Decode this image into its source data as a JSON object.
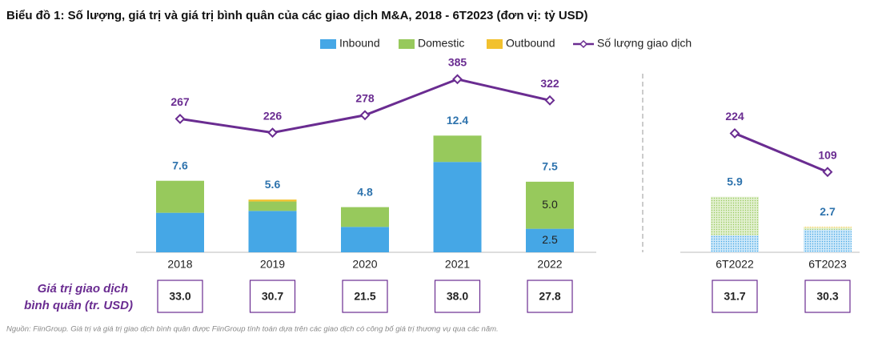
{
  "chart_data": {
    "type": "bar",
    "title": "Biểu đồ 1: Số lượng, giá trị và giá trị bình quân của các giao dịch M&A, 2018 - 6T2023 (đơn vị: tỷ USD)",
    "categories": [
      "2018",
      "2019",
      "2020",
      "2021",
      "2022",
      "6T2022",
      "6T2023"
    ],
    "break_before": "6T2022",
    "pattern_after_break": true,
    "ylim": [
      0,
      20
    ],
    "y2lim": [
      -130,
      430
    ],
    "series": [
      {
        "name": "Inbound",
        "color": "#45a7e6",
        "values": [
          4.2,
          4.4,
          2.7,
          9.6,
          2.5,
          1.8,
          2.4
        ],
        "value_labels": [
          null,
          null,
          null,
          null,
          "2.5",
          null,
          null
        ]
      },
      {
        "name": "Domestic",
        "color": "#97c95c",
        "values": [
          3.4,
          1.0,
          2.1,
          2.8,
          5.0,
          4.1,
          0.2
        ],
        "value_labels": [
          null,
          null,
          null,
          null,
          "5.0",
          null,
          null
        ]
      },
      {
        "name": "Outbound",
        "color": "#f2c12e",
        "values": [
          0,
          0.2,
          0,
          0,
          0,
          0,
          0.1
        ]
      },
      {
        "name": "Số lượng giao dịch",
        "type": "line",
        "axis": "y2",
        "color": "#6a2c91",
        "values": [
          267,
          226,
          278,
          385,
          322,
          224,
          109
        ]
      }
    ],
    "totals": [
      7.6,
      5.6,
      4.8,
      12.4,
      7.5,
      5.9,
      2.7
    ],
    "average": {
      "label": [
        "Giá trị giao dịch",
        "bình quân (tr. USD)"
      ],
      "values": [
        33,
        30.7,
        21.5,
        38,
        27.8,
        31.7,
        30.3
      ],
      "value_labels": [
        "33.0",
        "30.7",
        "21.5",
        "38.0",
        "27.8",
        "31.7",
        "30.3"
      ]
    },
    "source": "Nguồn: FiinGroup. Giá trị và giá trị giao dịch bình quân được FiinGroup tính toán dựa trên các giao dịch có công bố giá trị thương vụ qua các năm."
  }
}
